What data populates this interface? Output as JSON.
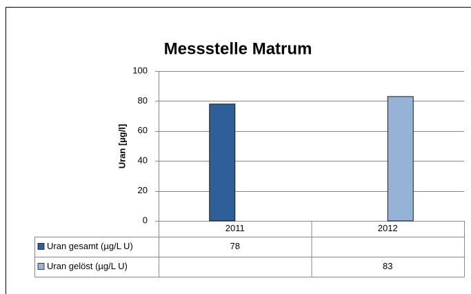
{
  "chart_data": {
    "type": "bar",
    "title": "Messstelle Matrum",
    "y_label": "Uran [µg/l]",
    "categories": [
      "2011",
      "2012"
    ],
    "series": [
      {
        "name": "Uran gesamt (µg/L U)",
        "color": "#2f5f98",
        "values": [
          78,
          null
        ]
      },
      {
        "name": "Uran gelöst (µg/L U)",
        "color": "#95b3d7",
        "values": [
          null,
          83
        ]
      }
    ],
    "ylim": [
      0,
      100
    ],
    "yticks": [
      0,
      20,
      40,
      60,
      80,
      100
    ],
    "grid": true,
    "data_table": true
  }
}
